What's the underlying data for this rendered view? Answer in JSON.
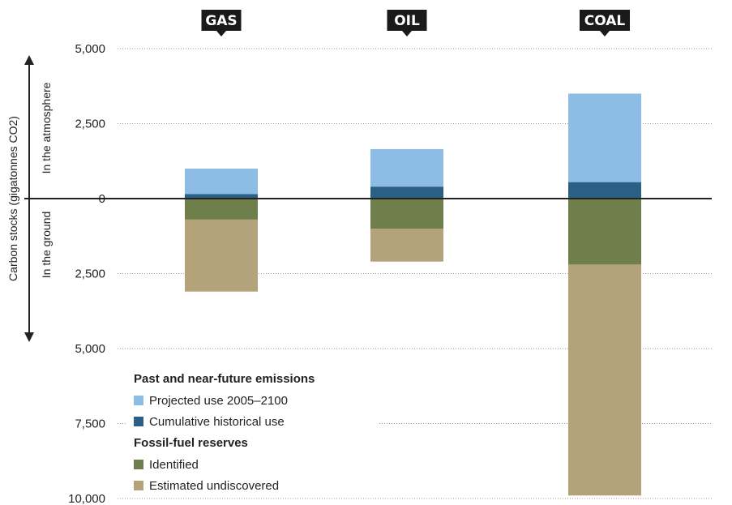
{
  "chart_data": {
    "type": "bar",
    "ylabel": "Carbon stocks (gigatonnes CO2)",
    "above_label": "In the atmosphere",
    "below_label": "In the ground",
    "categories": [
      "GAS",
      "OIL",
      "COAL"
    ],
    "y_ticks_above": [
      "5,000",
      "2,500",
      "0"
    ],
    "y_ticks_below": [
      "2,500",
      "5,000",
      "7,500",
      "10,000"
    ],
    "ylim": [
      -10000,
      5000
    ],
    "series": [
      {
        "name": "Cumulative historical use",
        "group": "emissions",
        "color": "#2c5f86",
        "values": [
          150,
          400,
          550
        ]
      },
      {
        "name": "Projected use 2005–2100",
        "group": "emissions",
        "color": "#8dbde4",
        "values": [
          850,
          1250,
          2950
        ]
      },
      {
        "name": "Identified",
        "group": "reserves",
        "color": "#6f7f4b",
        "values": [
          -700,
          -1000,
          -2200
        ]
      },
      {
        "name": "Estimated undiscovered",
        "group": "reserves",
        "color": "#b4a37a",
        "values": [
          -2400,
          -1100,
          -7700
        ]
      }
    ],
    "legend": {
      "groups": [
        {
          "title": "Past and near-future emissions",
          "items": [
            "Projected use 2005–2100",
            "Cumulative historical use"
          ]
        },
        {
          "title": "Fossil-fuel reserves",
          "items": [
            "Identified",
            "Estimated undiscovered"
          ]
        }
      ],
      "placement": "bottom-left"
    }
  }
}
